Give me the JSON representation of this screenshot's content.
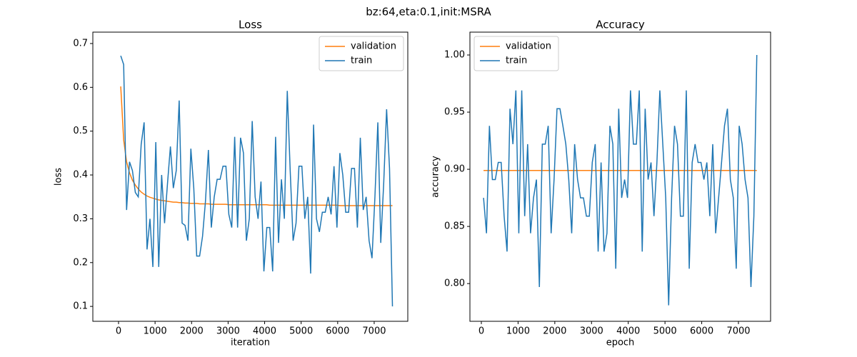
{
  "title": "bz:64,eta:0.1,init:MSRA",
  "chart_data": [
    {
      "type": "line",
      "title": "Loss",
      "x_label": "iteration",
      "y_label": "loss",
      "x": [
        60,
        140,
        220,
        300,
        380,
        460,
        540,
        620,
        700,
        780,
        860,
        940,
        1020,
        1100,
        1180,
        1260,
        1340,
        1420,
        1500,
        1580,
        1660,
        1740,
        1820,
        1900,
        1980,
        2060,
        2140,
        2220,
        2300,
        2380,
        2460,
        2540,
        2620,
        2700,
        2780,
        2860,
        2940,
        3020,
        3100,
        3180,
        3260,
        3340,
        3420,
        3500,
        3580,
        3660,
        3740,
        3820,
        3900,
        3980,
        4060,
        4140,
        4220,
        4300,
        4380,
        4460,
        4540,
        4620,
        4700,
        4780,
        4860,
        4940,
        5020,
        5100,
        5180,
        5260,
        5340,
        5420,
        5500,
        5580,
        5660,
        5740,
        5820,
        5900,
        5980,
        6060,
        6140,
        6220,
        6300,
        6380,
        6460,
        6540,
        6620,
        6700,
        6780,
        6860,
        6940,
        7020,
        7100,
        7180,
        7260,
        7340,
        7420,
        7500
      ],
      "series": [
        {
          "name": "validation",
          "color": "#ff7f0e",
          "values": [
            0.602,
            0.48,
            0.43,
            0.405,
            0.388,
            0.377,
            0.368,
            0.361,
            0.356,
            0.352,
            0.349,
            0.347,
            0.345,
            0.343,
            0.342,
            0.341,
            0.34,
            0.339,
            0.338,
            0.338,
            0.337,
            0.337,
            0.336,
            0.336,
            0.335,
            0.335,
            0.335,
            0.334,
            0.334,
            0.334,
            0.334,
            0.333,
            0.333,
            0.333,
            0.333,
            0.333,
            0.333,
            0.332,
            0.332,
            0.332,
            0.332,
            0.332,
            0.332,
            0.332,
            0.332,
            0.332,
            0.332,
            0.332,
            0.332,
            0.332,
            0.332,
            0.331,
            0.331,
            0.331,
            0.331,
            0.331,
            0.331,
            0.331,
            0.331,
            0.331,
            0.331,
            0.331,
            0.331,
            0.331,
            0.331,
            0.331,
            0.331,
            0.331,
            0.331,
            0.331,
            0.331,
            0.331,
            0.331,
            0.331,
            0.331,
            0.33,
            0.33,
            0.33,
            0.33,
            0.33,
            0.33,
            0.33,
            0.33,
            0.33,
            0.33,
            0.33,
            0.33,
            0.33,
            0.33,
            0.33,
            0.33,
            0.33,
            0.33,
            0.33
          ]
        },
        {
          "name": "train",
          "color": "#1f77b4",
          "values": [
            0.672,
            0.652,
            0.32,
            0.43,
            0.41,
            0.36,
            0.35,
            0.47,
            0.52,
            0.23,
            0.3,
            0.19,
            0.475,
            0.19,
            0.4,
            0.29,
            0.38,
            0.465,
            0.37,
            0.41,
            0.57,
            0.29,
            0.285,
            0.25,
            0.46,
            0.37,
            0.215,
            0.215,
            0.26,
            0.34,
            0.457,
            0.28,
            0.35,
            0.39,
            0.39,
            0.42,
            0.42,
            0.31,
            0.28,
            0.487,
            0.28,
            0.485,
            0.45,
            0.25,
            0.3,
            0.523,
            0.35,
            0.3,
            0.385,
            0.18,
            0.28,
            0.28,
            0.18,
            0.487,
            0.245,
            0.39,
            0.3,
            0.592,
            0.41,
            0.25,
            0.29,
            0.42,
            0.42,
            0.3,
            0.35,
            0.175,
            0.515,
            0.3,
            0.27,
            0.315,
            0.315,
            0.35,
            0.31,
            0.42,
            0.28,
            0.45,
            0.4,
            0.315,
            0.315,
            0.415,
            0.415,
            0.28,
            0.485,
            0.32,
            0.35,
            0.25,
            0.21,
            0.35,
            0.52,
            0.245,
            0.38,
            0.55,
            0.415,
            0.1
          ]
        }
      ],
      "xlim": [
        -704,
        7920
      ],
      "ylim": [
        0.066,
        0.726
      ],
      "xticks": [
        0,
        1000,
        2000,
        3000,
        4000,
        5000,
        6000,
        7000
      ],
      "yticks": [
        0.1,
        0.2,
        0.3,
        0.4,
        0.5,
        0.6,
        0.7
      ],
      "legend": "upper right"
    },
    {
      "type": "line",
      "title": "Accuracy",
      "x_label": "epoch",
      "y_label": "accuracy",
      "x": [
        60,
        140,
        220,
        300,
        380,
        460,
        540,
        620,
        700,
        780,
        860,
        940,
        1020,
        1100,
        1180,
        1260,
        1340,
        1420,
        1500,
        1580,
        1660,
        1740,
        1820,
        1900,
        1980,
        2060,
        2140,
        2220,
        2300,
        2380,
        2460,
        2540,
        2620,
        2700,
        2780,
        2860,
        2940,
        3020,
        3100,
        3180,
        3260,
        3340,
        3420,
        3500,
        3580,
        3660,
        3740,
        3820,
        3900,
        3980,
        4060,
        4140,
        4220,
        4300,
        4380,
        4460,
        4540,
        4620,
        4700,
        4780,
        4860,
        4940,
        5020,
        5100,
        5180,
        5260,
        5340,
        5420,
        5500,
        5580,
        5660,
        5740,
        5820,
        5900,
        5980,
        6060,
        6140,
        6220,
        6300,
        6380,
        6460,
        6540,
        6620,
        6700,
        6780,
        6860,
        6940,
        7020,
        7100,
        7180,
        7260,
        7340,
        7420,
        7500
      ],
      "series": [
        {
          "name": "validation",
          "color": "#ff7f0e",
          "values": [
            0.899,
            0.899,
            0.899,
            0.899,
            0.899,
            0.899,
            0.899,
            0.899,
            0.899,
            0.899,
            0.899,
            0.899,
            0.899,
            0.899,
            0.899,
            0.899,
            0.899,
            0.899,
            0.899,
            0.899,
            0.899,
            0.899,
            0.899,
            0.899,
            0.899,
            0.899,
            0.899,
            0.899,
            0.899,
            0.899,
            0.899,
            0.899,
            0.899,
            0.899,
            0.899,
            0.899,
            0.899,
            0.899,
            0.899,
            0.899,
            0.899,
            0.899,
            0.899,
            0.899,
            0.899,
            0.899,
            0.899,
            0.899,
            0.899,
            0.899,
            0.899,
            0.899,
            0.899,
            0.899,
            0.899,
            0.899,
            0.899,
            0.899,
            0.899,
            0.899,
            0.899,
            0.899,
            0.899,
            0.899,
            0.899,
            0.899,
            0.899,
            0.899,
            0.899,
            0.899,
            0.899,
            0.899,
            0.899,
            0.899,
            0.899,
            0.899,
            0.899,
            0.899,
            0.899,
            0.899,
            0.899,
            0.899,
            0.899,
            0.899,
            0.899,
            0.899,
            0.899,
            0.899,
            0.899,
            0.899,
            0.899,
            0.899,
            0.899,
            0.899
          ]
        },
        {
          "name": "train",
          "color": "#1f77b4",
          "values": [
            0.875,
            0.844,
            0.938,
            0.891,
            0.891,
            0.906,
            0.906,
            0.859,
            0.828,
            0.953,
            0.922,
            0.969,
            0.844,
            0.969,
            0.859,
            0.922,
            0.844,
            0.875,
            0.891,
            0.797,
            0.922,
            0.922,
            0.938,
            0.844,
            0.891,
            0.953,
            0.953,
            0.938,
            0.922,
            0.891,
            0.844,
            0.922,
            0.891,
            0.875,
            0.875,
            0.859,
            0.859,
            0.906,
            0.922,
            0.828,
            0.906,
            0.828,
            0.844,
            0.938,
            0.922,
            0.813,
            0.953,
            0.875,
            0.891,
            0.875,
            0.969,
            0.922,
            0.922,
            0.969,
            0.828,
            0.953,
            0.891,
            0.906,
            0.859,
            0.906,
            0.969,
            0.922,
            0.875,
            0.781,
            0.875,
            0.938,
            0.922,
            0.859,
            0.859,
            0.969,
            0.813,
            0.906,
            0.922,
            0.906,
            0.906,
            0.891,
            0.906,
            0.859,
            0.922,
            0.844,
            0.875,
            0.906,
            0.938,
            0.953,
            0.891,
            0.875,
            0.813,
            0.938,
            0.922,
            0.891,
            0.875,
            0.797,
            0.859,
            1.0
          ]
        }
      ],
      "xlim": [
        -311,
        7875
      ],
      "ylim": [
        0.767,
        1.02
      ],
      "xticks": [
        0,
        1000,
        2000,
        3000,
        4000,
        5000,
        6000,
        7000
      ],
      "yticks": [
        {
          "value": 0.8,
          "label": "0.80"
        },
        {
          "value": 0.85,
          "label": "0.85"
        },
        {
          "value": 0.9,
          "label": "0.90"
        },
        {
          "value": 0.95,
          "label": "0.95"
        },
        {
          "value": 1.0,
          "label": "1.00"
        }
      ],
      "legend": "upper left"
    }
  ]
}
